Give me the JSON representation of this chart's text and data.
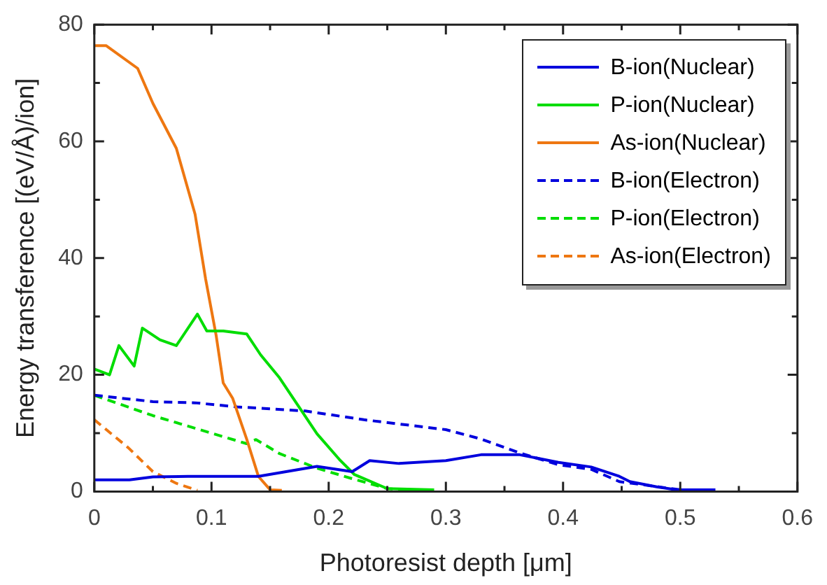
{
  "chart_data": {
    "type": "line",
    "xlabel": "Photoresist depth [μm]",
    "ylabel": "Energy transference [(eV/Å)/ion]",
    "xlim": [
      0,
      0.6
    ],
    "xticks": [
      0,
      {
        "value": 0.05,
        "label": null
      },
      0.1,
      {
        "value": 0.15,
        "label": null
      },
      0.2,
      {
        "value": 0.25,
        "label": null
      },
      0.3,
      {
        "value": 0.35,
        "label": null
      },
      0.4,
      {
        "value": 0.45,
        "label": null
      },
      0.5,
      {
        "value": 0.55,
        "label": null
      },
      0.6
    ],
    "ylim": [
      0,
      80
    ],
    "yticks": [
      0,
      {
        "value": 10,
        "label": null
      },
      20,
      {
        "value": 30,
        "label": null
      },
      40,
      {
        "value": 50,
        "label": null
      },
      60,
      {
        "value": 70,
        "label": null
      },
      80
    ],
    "legend": "top right",
    "marker": "none",
    "series": [
      {
        "name": "B-ion(Nuclear)",
        "color": "#0000dd",
        "line_style": "solid",
        "x": [
          0,
          0.03,
          0.05,
          0.08,
          0.1,
          0.14,
          0.19,
          0.22,
          0.235,
          0.26,
          0.3,
          0.33,
          0.363,
          0.396,
          0.424,
          0.448,
          0.457,
          0.48,
          0.497,
          0.53
        ],
        "values": [
          2,
          2,
          2.5,
          2.6,
          2.6,
          2.6,
          4.3,
          3.4,
          5.3,
          4.8,
          5.3,
          6.3,
          6.3,
          5,
          4.2,
          2.6,
          1.7,
          0.8,
          0.3,
          0.3
        ]
      },
      {
        "name": "P-ion(Nuclear)",
        "color": "#00dd00",
        "line_style": "solid",
        "x": [
          0,
          0.013,
          0.021,
          0.034,
          0.041,
          0.056,
          0.07,
          0.088,
          0.096,
          0.11,
          0.13,
          0.142,
          0.158,
          0.174,
          0.19,
          0.21,
          0.222,
          0.25,
          0.29
        ],
        "values": [
          21,
          20,
          25,
          21.5,
          28,
          26,
          25,
          30.4,
          27.5,
          27.5,
          27,
          23.4,
          19.5,
          14.7,
          9.9,
          5.3,
          2.9,
          0.5,
          0.3
        ]
      },
      {
        "name": "As-ion(Nuclear)",
        "color": "#ee7711",
        "line_style": "solid",
        "x": [
          0,
          0.01,
          0.037,
          0.05,
          0.07,
          0.086,
          0.095,
          0.104,
          0.11,
          0.118,
          0.13,
          0.14,
          0.15,
          0.16
        ],
        "values": [
          76.4,
          76.4,
          72.5,
          66.5,
          58.8,
          47.5,
          36.4,
          26.7,
          18.6,
          16,
          9,
          2.6,
          0.3,
          0.2
        ]
      },
      {
        "name": "B-ion(Electron)",
        "color": "#0000dd",
        "line_style": "dashed",
        "x": [
          0,
          0.05,
          0.086,
          0.122,
          0.18,
          0.23,
          0.3,
          0.33,
          0.363,
          0.396,
          0.424,
          0.448,
          0.5,
          0.52
        ],
        "values": [
          16.5,
          15.4,
          15.2,
          14.5,
          13.8,
          12.3,
          10.6,
          9,
          6.6,
          4.6,
          3.8,
          1.7,
          0.3,
          0.2
        ]
      },
      {
        "name": "P-ion(Electron)",
        "color": "#00dd00",
        "line_style": "dashed",
        "x": [
          0,
          0.05,
          0.09,
          0.13,
          0.138,
          0.158,
          0.19,
          0.22,
          0.25,
          0.27
        ],
        "values": [
          16.5,
          13,
          10.6,
          8.2,
          8.9,
          6.5,
          4,
          2.2,
          0.5,
          0.2
        ]
      },
      {
        "name": "As-ion(Electron)",
        "color": "#ee7711",
        "line_style": "dashed",
        "x": [
          0,
          0.029,
          0.05,
          0.07,
          0.088
        ],
        "values": [
          12.3,
          7.5,
          3.4,
          1.4,
          0.2
        ]
      }
    ]
  }
}
